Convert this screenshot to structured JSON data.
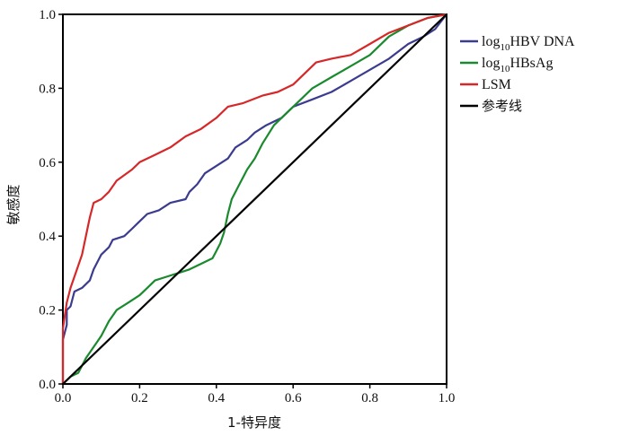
{
  "chart_data": {
    "type": "line",
    "title": "",
    "xlabel": "1-特异度",
    "ylabel": "敏感度",
    "xlim": [
      0,
      1
    ],
    "ylim": [
      0,
      1
    ],
    "x_ticks": [
      "0.0",
      "0.2",
      "0.4",
      "0.6",
      "0.8",
      "1.0"
    ],
    "y_ticks": [
      "0.0",
      "0.2",
      "0.4",
      "0.6",
      "0.8",
      "1.0"
    ],
    "grid": false,
    "legend_position": "right",
    "series": [
      {
        "name": "log10HBV DNA",
        "legend_main": "log",
        "legend_sub": "10",
        "legend_rest": "HBV DNA",
        "color": "#3b3b8f",
        "points": [
          [
            0,
            0
          ],
          [
            0,
            0.12
          ],
          [
            0.01,
            0.16
          ],
          [
            0.01,
            0.2
          ],
          [
            0.02,
            0.21
          ],
          [
            0.03,
            0.25
          ],
          [
            0.05,
            0.26
          ],
          [
            0.07,
            0.28
          ],
          [
            0.08,
            0.31
          ],
          [
            0.1,
            0.35
          ],
          [
            0.12,
            0.37
          ],
          [
            0.13,
            0.39
          ],
          [
            0.16,
            0.4
          ],
          [
            0.18,
            0.42
          ],
          [
            0.2,
            0.44
          ],
          [
            0.22,
            0.46
          ],
          [
            0.25,
            0.47
          ],
          [
            0.28,
            0.49
          ],
          [
            0.32,
            0.5
          ],
          [
            0.33,
            0.52
          ],
          [
            0.35,
            0.54
          ],
          [
            0.37,
            0.57
          ],
          [
            0.4,
            0.59
          ],
          [
            0.43,
            0.61
          ],
          [
            0.45,
            0.64
          ],
          [
            0.48,
            0.66
          ],
          [
            0.5,
            0.68
          ],
          [
            0.53,
            0.7
          ],
          [
            0.57,
            0.72
          ],
          [
            0.6,
            0.75
          ],
          [
            0.65,
            0.77
          ],
          [
            0.7,
            0.79
          ],
          [
            0.75,
            0.82
          ],
          [
            0.8,
            0.85
          ],
          [
            0.85,
            0.88
          ],
          [
            0.9,
            0.92
          ],
          [
            0.94,
            0.94
          ],
          [
            0.97,
            0.96
          ],
          [
            1,
            1
          ]
        ]
      },
      {
        "name": "log10HBsAg",
        "legend_main": "log",
        "legend_sub": "10",
        "legend_rest": "HBsAg",
        "color": "#1a8a2e",
        "points": [
          [
            0,
            0
          ],
          [
            0.02,
            0.02
          ],
          [
            0.04,
            0.03
          ],
          [
            0.06,
            0.07
          ],
          [
            0.08,
            0.1
          ],
          [
            0.1,
            0.13
          ],
          [
            0.12,
            0.17
          ],
          [
            0.14,
            0.2
          ],
          [
            0.17,
            0.22
          ],
          [
            0.2,
            0.24
          ],
          [
            0.22,
            0.26
          ],
          [
            0.24,
            0.28
          ],
          [
            0.27,
            0.29
          ],
          [
            0.3,
            0.3
          ],
          [
            0.33,
            0.31
          ],
          [
            0.37,
            0.33
          ],
          [
            0.39,
            0.34
          ],
          [
            0.4,
            0.36
          ],
          [
            0.41,
            0.38
          ],
          [
            0.42,
            0.41
          ],
          [
            0.43,
            0.46
          ],
          [
            0.44,
            0.5
          ],
          [
            0.46,
            0.54
          ],
          [
            0.48,
            0.58
          ],
          [
            0.5,
            0.61
          ],
          [
            0.52,
            0.65
          ],
          [
            0.55,
            0.7
          ],
          [
            0.58,
            0.73
          ],
          [
            0.61,
            0.76
          ],
          [
            0.65,
            0.8
          ],
          [
            0.7,
            0.83
          ],
          [
            0.75,
            0.86
          ],
          [
            0.8,
            0.89
          ],
          [
            0.85,
            0.94
          ],
          [
            0.9,
            0.97
          ],
          [
            0.95,
            0.99
          ],
          [
            1,
            1
          ]
        ]
      },
      {
        "name": "LSM",
        "legend_main": "LSM",
        "legend_sub": "",
        "legend_rest": "",
        "color": "#d62828",
        "points": [
          [
            0,
            0
          ],
          [
            0,
            0.15
          ],
          [
            0.01,
            0.22
          ],
          [
            0.02,
            0.26
          ],
          [
            0.03,
            0.29
          ],
          [
            0.05,
            0.35
          ],
          [
            0.06,
            0.4
          ],
          [
            0.07,
            0.45
          ],
          [
            0.08,
            0.49
          ],
          [
            0.1,
            0.5
          ],
          [
            0.12,
            0.52
          ],
          [
            0.14,
            0.55
          ],
          [
            0.18,
            0.58
          ],
          [
            0.2,
            0.6
          ],
          [
            0.24,
            0.62
          ],
          [
            0.28,
            0.64
          ],
          [
            0.32,
            0.67
          ],
          [
            0.36,
            0.69
          ],
          [
            0.4,
            0.72
          ],
          [
            0.43,
            0.75
          ],
          [
            0.47,
            0.76
          ],
          [
            0.52,
            0.78
          ],
          [
            0.56,
            0.79
          ],
          [
            0.6,
            0.81
          ],
          [
            0.63,
            0.84
          ],
          [
            0.66,
            0.87
          ],
          [
            0.7,
            0.88
          ],
          [
            0.75,
            0.89
          ],
          [
            0.8,
            0.92
          ],
          [
            0.85,
            0.95
          ],
          [
            0.9,
            0.97
          ],
          [
            0.95,
            0.99
          ],
          [
            1,
            1
          ]
        ]
      },
      {
        "name": "参考线",
        "legend_main": "参考线",
        "legend_sub": "",
        "legend_rest": "",
        "color": "#000000",
        "points": [
          [
            0,
            0
          ],
          [
            1,
            1
          ]
        ]
      }
    ]
  }
}
